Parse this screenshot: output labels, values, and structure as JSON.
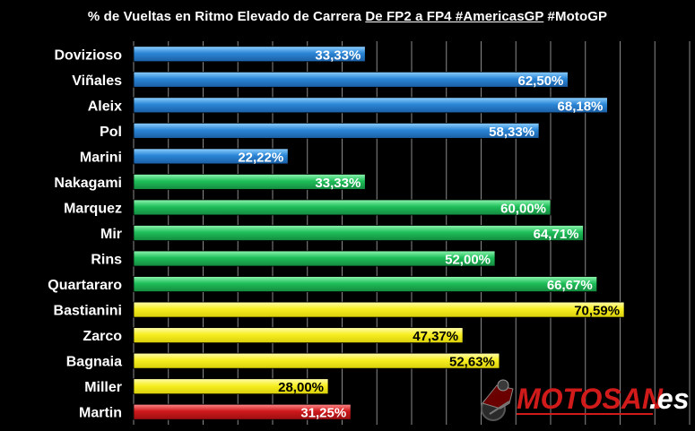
{
  "title": {
    "prefix": "% de Vueltas en Ritmo Elevado de Carrera ",
    "underlined": "De FP2 a FP4 #AmericasGP",
    "suffix": " #MotoGP"
  },
  "colors": {
    "background": "#000000",
    "grid": "#8a8a8a",
    "blue": "#2b86d6",
    "green": "#1fbf5a",
    "yellow": "#f7ef22",
    "red": "#d0191c"
  },
  "chart_data": {
    "type": "bar",
    "orientation": "horizontal",
    "categories": [
      "Dovizioso",
      "Viñales",
      "Aleix",
      "Pol",
      "Marini",
      "Nakagami",
      "Marquez",
      "Mir",
      "Rins",
      "Quartararo",
      "Bastianini",
      "Zarco",
      "Bagnaia",
      "Miller",
      "Martin"
    ],
    "values": [
      33.33,
      62.5,
      68.18,
      58.33,
      22.22,
      33.33,
      60.0,
      64.71,
      52.0,
      66.67,
      70.59,
      47.37,
      52.63,
      28.0,
      31.25
    ],
    "value_labels": [
      "33,33%",
      "62,50%",
      "68,18%",
      "58,33%",
      "22,22%",
      "33,33%",
      "60,00%",
      "64,71%",
      "52,00%",
      "66,67%",
      "70,59%",
      "47,37%",
      "52,63%",
      "28,00%",
      "31,25%"
    ],
    "bar_colors": [
      "blue",
      "blue",
      "blue",
      "blue",
      "blue",
      "green",
      "green",
      "green",
      "green",
      "green",
      "yellow",
      "yellow",
      "yellow",
      "yellow",
      "red"
    ],
    "xlim": [
      0,
      80
    ],
    "grid": true,
    "legend": "none",
    "xlabel": "",
    "ylabel": ""
  },
  "logo": {
    "text_main": "MOTOSAN",
    "text_accent": ".es"
  }
}
